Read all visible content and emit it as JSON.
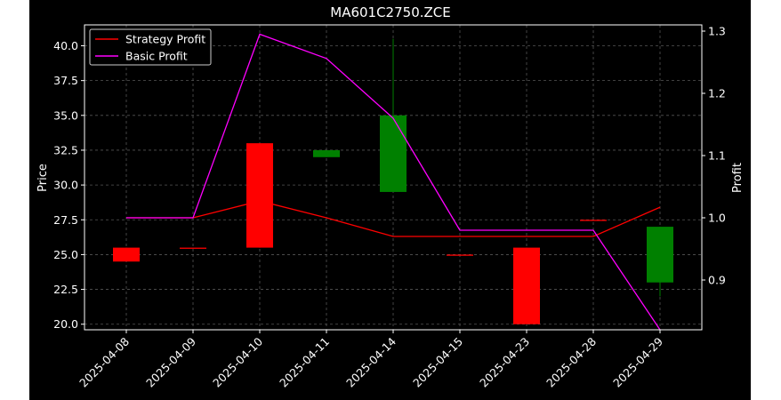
{
  "chart_data": {
    "type": "candlestick",
    "title": "MA601C2750.ZCE",
    "ylabel": "Price",
    "y2label": "Profit",
    "categories": [
      "2025-04-08",
      "2025-04-09",
      "2025-04-10",
      "2025-04-11",
      "2025-04-14",
      "2025-04-15",
      "2025-04-23",
      "2025-04-28",
      "2025-04-29"
    ],
    "ylim": [
      19.6,
      41.5
    ],
    "y2lim": [
      0.82,
      1.31
    ],
    "yticks": [
      "20.0",
      "22.5",
      "25.0",
      "27.5",
      "30.0",
      "32.5",
      "35.0",
      "37.5",
      "40.0"
    ],
    "y2ticks": [
      "0.9",
      "1.0",
      "1.1",
      "1.2",
      "1.3"
    ],
    "candles": [
      {
        "open": 24.5,
        "close": 25.5,
        "high": 25.5,
        "low": 24.5,
        "color": "#ff0000"
      },
      {
        "open": 25.5,
        "close": 25.5,
        "high": 25.5,
        "low": 25.5,
        "color": "#ff0000"
      },
      {
        "open": 25.5,
        "close": 33.0,
        "high": 33.0,
        "low": 25.5,
        "color": "#ff0000"
      },
      {
        "open": 32.5,
        "close": 32.0,
        "high": 32.5,
        "low": 32.0,
        "color": "#008000"
      },
      {
        "open": 35.0,
        "close": 29.5,
        "high": 40.5,
        "low": 29.5,
        "color": "#008000"
      },
      {
        "open": 25.0,
        "close": 25.0,
        "high": 25.0,
        "low": 25.0,
        "color": "#ff0000"
      },
      {
        "open": 20.0,
        "close": 25.5,
        "high": 25.5,
        "low": 20.0,
        "color": "#ff0000"
      },
      {
        "open": 27.5,
        "close": 27.5,
        "high": 27.5,
        "low": 27.5,
        "color": "#ff0000"
      },
      {
        "open": 27.0,
        "close": 23.0,
        "high": 27.0,
        "low": 22.0,
        "color": "#008000"
      }
    ],
    "series": [
      {
        "name": "Strategy Profit",
        "color": "#ff0000",
        "values": [
          1.0,
          1.0,
          1.027,
          1.0,
          0.97,
          0.97,
          0.97,
          0.97,
          1.017
        ]
      },
      {
        "name": "Basic Profit",
        "color": "#ff00ff",
        "values": [
          1.0,
          1.0,
          1.295,
          1.256,
          1.16,
          0.98,
          0.98,
          0.98,
          0.82
        ]
      }
    ],
    "grid": true,
    "legend": "top-left"
  }
}
